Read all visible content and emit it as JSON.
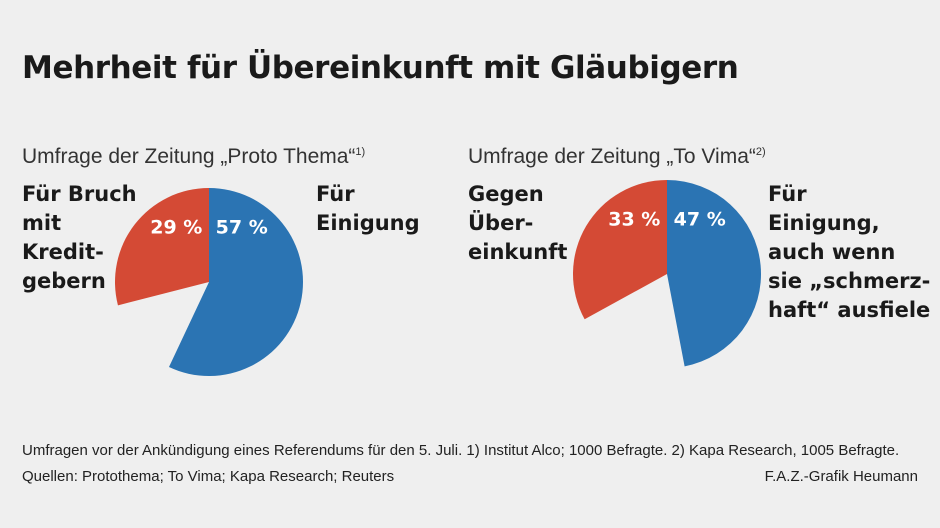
{
  "title": "Mehrheit für Übereinkunft mit Gläubigern",
  "chart_data": [
    {
      "type": "pie",
      "title": "Umfrage der Zeitung „Proto Thema“",
      "title_note": "1)",
      "slices": [
        {
          "name": "Für Einigung",
          "value": 57,
          "label": "57 %",
          "color": "#2b74b3"
        },
        {
          "name": "Für Bruch mit Kreditgebern",
          "value": 29,
          "label": "29 %",
          "color": "#d44a35"
        }
      ],
      "labels": {
        "left": "Für Bruch\nmit\nKredit-\ngebern",
        "right": "Für\nEinigung"
      }
    },
    {
      "type": "pie",
      "title": "Umfrage der Zeitung „To Vima“",
      "title_note": "2)",
      "slices": [
        {
          "name": "Für Einigung, auch wenn sie „schmerzhaft“ ausfiele",
          "value": 47,
          "label": "47 %",
          "color": "#2b74b3"
        },
        {
          "name": "Gegen Übereinkunft",
          "value": 33,
          "label": "33 %",
          "color": "#d44a35"
        }
      ],
      "labels": {
        "left": "Gegen\nÜber-\neinkunft",
        "right": "Für\nEinigung,\nauch wenn\nsie „schmerz-\nhaft“ ausfiele"
      }
    }
  ],
  "footer": {
    "line1": "Umfragen vor der Ankündigung eines Referendums für den 5. Juli.  1) Institut Alco; 1000 Befragte.  2) Kapa Research, 1005 Befragte.",
    "line2": "Quellen: Protothema; To Vima; Kapa Research; Reuters",
    "credit": "F.A.Z.-Grafik Heumann"
  }
}
